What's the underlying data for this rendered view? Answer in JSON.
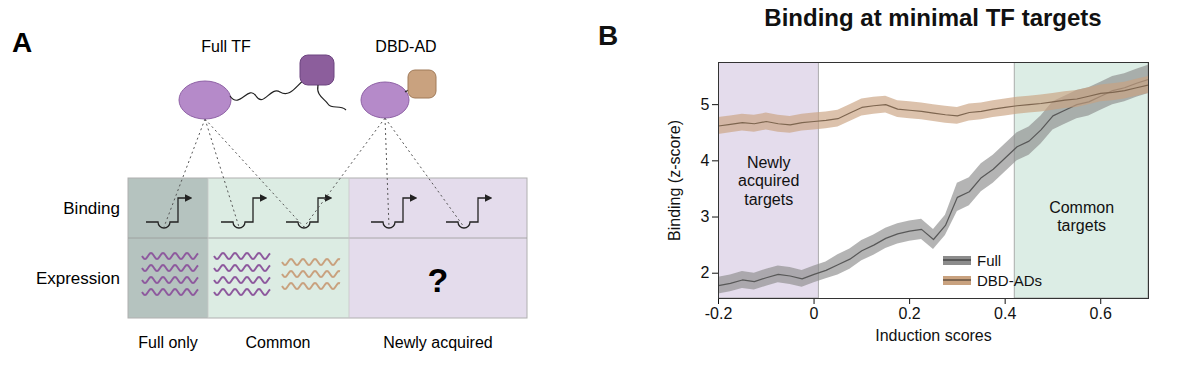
{
  "diagram": {
    "panel_label": "A",
    "nodes": [
      {
        "label": "Full TF"
      },
      {
        "label": "DBD-AD"
      }
    ],
    "rows": [
      "Binding",
      "Expression"
    ],
    "columns": [
      "Full only",
      "Common",
      "Newly acquired"
    ],
    "unknown_label": "?"
  },
  "chart_data": {
    "panel_label": "B",
    "type": "line",
    "title": "Binding at minimal TF targets",
    "x_label": "Induction scores",
    "y_label": "Binding (z-score)",
    "xlim": [
      -0.2,
      0.7
    ],
    "ylim": [
      1.55,
      5.75
    ],
    "xticks": [
      -0.2,
      0,
      0.2,
      0.4,
      0.6
    ],
    "yticks": [
      2,
      3,
      4,
      5
    ],
    "grid": false,
    "legend": "lower center",
    "x": [
      -0.2,
      -0.175,
      -0.15,
      -0.125,
      -0.1,
      -0.075,
      -0.05,
      -0.025,
      0,
      0.025,
      0.05,
      0.075,
      0.1,
      0.125,
      0.15,
      0.175,
      0.2,
      0.225,
      0.25,
      0.275,
      0.3,
      0.325,
      0.35,
      0.375,
      0.4,
      0.425,
      0.45,
      0.475,
      0.5,
      0.525,
      0.55,
      0.575,
      0.6,
      0.625,
      0.65,
      0.675,
      0.7
    ],
    "series": [
      {
        "name": "Full",
        "color": "#8c8c8c",
        "values": [
          1.78,
          1.82,
          1.88,
          1.85,
          1.92,
          1.98,
          1.95,
          1.9,
          1.98,
          2.05,
          2.15,
          2.25,
          2.4,
          2.5,
          2.62,
          2.7,
          2.75,
          2.78,
          2.6,
          2.85,
          3.35,
          3.45,
          3.7,
          3.85,
          4.05,
          4.25,
          4.35,
          4.55,
          4.8,
          4.9,
          5.0,
          5.05,
          5.15,
          5.25,
          5.3,
          5.38,
          5.45
        ],
        "errors": [
          0.15,
          0.15,
          0.15,
          0.15,
          0.15,
          0.15,
          0.15,
          0.15,
          0.15,
          0.15,
          0.18,
          0.18,
          0.18,
          0.18,
          0.18,
          0.18,
          0.18,
          0.18,
          0.18,
          0.18,
          0.25,
          0.25,
          0.25,
          0.25,
          0.25,
          0.25,
          0.25,
          0.25,
          0.25,
          0.25,
          0.25,
          0.25,
          0.25,
          0.25,
          0.25,
          0.25,
          0.25
        ]
      },
      {
        "name": "DBD-ADs",
        "color": "#c9a27f",
        "values": [
          4.62,
          4.65,
          4.68,
          4.66,
          4.7,
          4.66,
          4.64,
          4.68,
          4.7,
          4.72,
          4.75,
          4.85,
          4.95,
          4.98,
          5.0,
          4.92,
          4.9,
          4.88,
          4.85,
          4.82,
          4.8,
          4.86,
          4.88,
          4.92,
          4.95,
          4.98,
          5.0,
          5.02,
          5.05,
          5.08,
          5.1,
          5.15,
          5.2,
          5.22,
          5.25,
          5.3,
          5.35
        ],
        "errors": [
          0.15,
          0.15,
          0.15,
          0.15,
          0.15,
          0.15,
          0.15,
          0.15,
          0.15,
          0.15,
          0.15,
          0.15,
          0.15,
          0.15,
          0.15,
          0.15,
          0.15,
          0.15,
          0.15,
          0.15,
          0.15,
          0.15,
          0.15,
          0.15,
          0.15,
          0.15,
          0.15,
          0.15,
          0.15,
          0.15,
          0.15,
          0.15,
          0.15,
          0.15,
          0.15,
          0.15,
          0.15
        ]
      }
    ],
    "regions": [
      {
        "label": "Newly\nacquired\ntargets",
        "x": [
          -0.2,
          0.01
        ],
        "color": "#e4dcec"
      },
      {
        "label": "Common\ntargets",
        "x": [
          0.42,
          0.7
        ],
        "color": "#dcede5"
      }
    ]
  }
}
